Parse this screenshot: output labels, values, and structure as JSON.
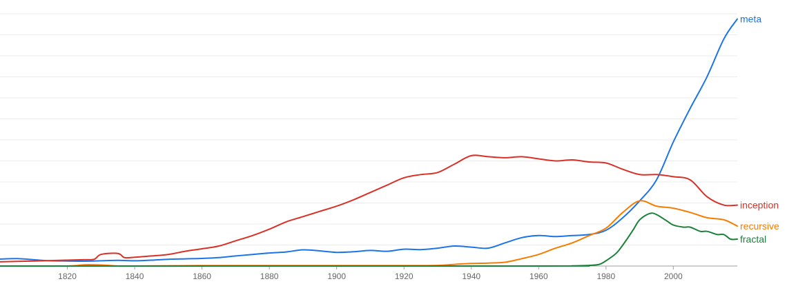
{
  "chart_data": {
    "type": "line",
    "xlim": [
      1800,
      2019
    ],
    "ylim": [
      0,
      12
    ],
    "x_ticks": [
      1820,
      1840,
      1860,
      1880,
      1900,
      1920,
      1940,
      1960,
      1980,
      2000
    ],
    "grid": "horizontal",
    "legend": "right-edge labels",
    "series": [
      {
        "name": "meta",
        "color": "#1a73e8",
        "x": [
          1800,
          1805,
          1810,
          1815,
          1820,
          1825,
          1830,
          1835,
          1840,
          1845,
          1850,
          1855,
          1860,
          1865,
          1870,
          1875,
          1880,
          1885,
          1890,
          1895,
          1900,
          1905,
          1910,
          1915,
          1920,
          1925,
          1930,
          1935,
          1940,
          1945,
          1950,
          1955,
          1960,
          1965,
          1970,
          1975,
          1980,
          1985,
          1990,
          1995,
          2000,
          2005,
          2010,
          2015,
          2019
        ],
        "y": [
          0.33,
          0.35,
          0.3,
          0.25,
          0.24,
          0.23,
          0.25,
          0.27,
          0.25,
          0.28,
          0.32,
          0.34,
          0.36,
          0.4,
          0.48,
          0.55,
          0.62,
          0.67,
          0.77,
          0.72,
          0.65,
          0.68,
          0.74,
          0.7,
          0.8,
          0.78,
          0.85,
          0.95,
          0.9,
          0.85,
          1.1,
          1.35,
          1.45,
          1.4,
          1.45,
          1.5,
          1.7,
          2.3,
          3.1,
          4.1,
          5.9,
          7.5,
          9.0,
          10.8,
          11.75
        ]
      },
      {
        "name": "inception",
        "color": "#d93025",
        "x": [
          1800,
          1805,
          1810,
          1815,
          1820,
          1825,
          1828,
          1830,
          1835,
          1837,
          1840,
          1845,
          1850,
          1855,
          1860,
          1865,
          1870,
          1875,
          1880,
          1885,
          1890,
          1895,
          1900,
          1905,
          1910,
          1915,
          1920,
          1925,
          1930,
          1935,
          1940,
          1945,
          1950,
          1955,
          1960,
          1965,
          1970,
          1975,
          1980,
          1985,
          1990,
          1995,
          2000,
          2005,
          2010,
          2015,
          2019
        ],
        "y": [
          0.2,
          0.22,
          0.24,
          0.26,
          0.28,
          0.3,
          0.32,
          0.55,
          0.6,
          0.4,
          0.42,
          0.48,
          0.55,
          0.7,
          0.82,
          0.95,
          1.2,
          1.45,
          1.75,
          2.1,
          2.35,
          2.6,
          2.85,
          3.15,
          3.5,
          3.85,
          4.2,
          4.35,
          4.45,
          4.85,
          5.25,
          5.2,
          5.15,
          5.2,
          5.1,
          5.0,
          5.05,
          4.95,
          4.9,
          4.6,
          4.35,
          4.35,
          4.25,
          4.1,
          3.3,
          2.9,
          2.9
        ]
      },
      {
        "name": "recursive",
        "color": "#f57c00",
        "x": [
          1800,
          1820,
          1825,
          1830,
          1835,
          1840,
          1860,
          1880,
          1900,
          1920,
          1930,
          1935,
          1940,
          1945,
          1950,
          1955,
          1960,
          1965,
          1970,
          1975,
          1980,
          1985,
          1990,
          1995,
          2000,
          2005,
          2010,
          2015,
          2019
        ],
        "y": [
          0.0,
          0.0,
          0.06,
          0.05,
          0.0,
          0.0,
          0.02,
          0.02,
          0.02,
          0.02,
          0.03,
          0.08,
          0.12,
          0.14,
          0.18,
          0.35,
          0.55,
          0.85,
          1.1,
          1.45,
          1.8,
          2.55,
          3.1,
          2.85,
          2.75,
          2.55,
          2.3,
          2.2,
          1.9
        ]
      },
      {
        "name": "fractal",
        "color": "#188038",
        "x": [
          1800,
          1960,
          1970,
          1975,
          1978,
          1980,
          1983,
          1985,
          1988,
          1990,
          1993,
          1995,
          1998,
          2000,
          2003,
          2005,
          2008,
          2010,
          2013,
          2015,
          2017,
          2019
        ],
        "y": [
          0.0,
          0.0,
          0.01,
          0.03,
          0.08,
          0.25,
          0.6,
          1.0,
          1.7,
          2.2,
          2.5,
          2.45,
          2.15,
          1.95,
          1.85,
          1.85,
          1.65,
          1.65,
          1.5,
          1.5,
          1.28,
          1.28
        ]
      }
    ]
  }
}
